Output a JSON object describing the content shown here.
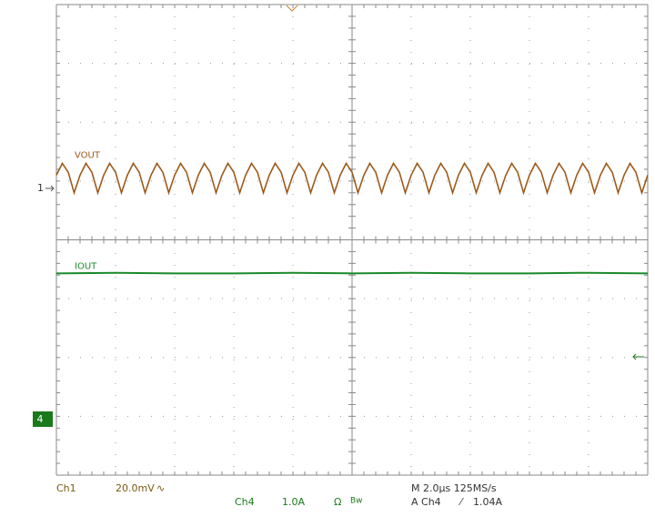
{
  "chart_data": {
    "type": "line",
    "series": [
      {
        "name": "VOUT",
        "color": "#9c5a1a",
        "x": [
          0,
          0.1,
          0.2,
          0.3,
          0.4,
          0.5,
          0.6,
          0.7,
          0.8,
          0.9,
          1,
          1.1,
          1.2,
          1.3,
          1.4,
          1.5,
          1.6,
          1.7,
          1.8,
          1.9,
          2,
          2.1,
          2.2,
          2.3,
          2.4,
          2.5,
          2.6,
          2.7,
          2.8,
          2.9,
          3,
          3.1,
          3.2,
          3.3,
          3.4,
          3.5,
          3.6,
          3.7,
          3.8,
          3.9,
          4,
          4.1,
          4.2,
          4.3,
          4.4,
          4.5,
          4.6,
          4.7,
          4.8,
          4.9,
          5,
          5.1,
          5.2,
          5.3,
          5.4,
          5.5,
          5.6,
          5.7,
          5.8,
          5.9,
          6,
          6.1,
          6.2,
          6.3,
          6.4,
          6.5,
          6.6,
          6.7,
          6.8,
          6.9,
          7,
          7.1,
          7.2,
          7.3,
          7.4,
          7.5,
          7.6,
          7.7,
          7.8,
          7.9,
          8,
          8.1,
          8.2,
          8.3,
          8.4,
          8.5,
          8.6,
          8.7,
          8.8,
          8.9,
          9,
          9.1,
          9.2,
          9.3,
          9.4,
          9.5,
          9.6,
          9.7,
          9.8,
          9.9,
          10
        ],
        "values": [
          1.1,
          1.3,
          1.15,
          0.8,
          1.1,
          1.3,
          1.15,
          0.8,
          1.1,
          1.3,
          1.15,
          0.8,
          1.1,
          1.3,
          1.15,
          0.8,
          1.1,
          1.3,
          1.15,
          0.8,
          1.1,
          1.3,
          1.15,
          0.8,
          1.1,
          1.3,
          1.15,
          0.8,
          1.1,
          1.3,
          1.15,
          0.8,
          1.1,
          1.3,
          1.15,
          0.8,
          1.1,
          1.3,
          1.15,
          0.8,
          1.1,
          1.3,
          1.15,
          0.8,
          1.1,
          1.3,
          1.15,
          0.8,
          1.1,
          1.3,
          1.15,
          0.8,
          1.1,
          1.3,
          1.15,
          0.8,
          1.1,
          1.3,
          1.15,
          0.8,
          1.1,
          1.3,
          1.15,
          0.8,
          1.1,
          1.3,
          1.15,
          0.8,
          1.1,
          1.3,
          1.15,
          0.8,
          1.1,
          1.3,
          1.15,
          0.8,
          1.1,
          1.3,
          1.15,
          0.8,
          1.1,
          1.3,
          1.15,
          0.8,
          1.1,
          1.3,
          1.15,
          0.8,
          1.1,
          1.3,
          1.15,
          0.8,
          1.1,
          1.3,
          1.15,
          0.8,
          1.1,
          1.3,
          1.15,
          0.8,
          1.1
        ]
      },
      {
        "name": "IOUT",
        "color": "#1a8a2a",
        "x": [
          0,
          1,
          2,
          3,
          4,
          5,
          6,
          7,
          8,
          9,
          10
        ],
        "values": [
          -0.57,
          -0.56,
          -0.57,
          -0.57,
          -0.56,
          -0.57,
          -0.56,
          -0.57,
          -0.57,
          -0.56,
          -0.57
        ]
      }
    ],
    "xlim": [
      0,
      10
    ],
    "ylim": [
      -4,
      4
    ],
    "xticks": [
      0,
      1,
      2,
      3,
      4,
      5,
      6,
      7,
      8,
      9,
      10
    ],
    "yticks": [
      -4,
      -3,
      -2,
      -1,
      0,
      1,
      2,
      3,
      4
    ],
    "grid": true,
    "markers": {
      "ch1": "1",
      "ch4": "4"
    },
    "readout": {
      "ch1": "Ch1",
      "ch1_scale": "20.0mV",
      "ch1_bw": "∿",
      "ch4": "Ch4",
      "ch4_scale": "1.0A",
      "ch4_imp": "Ω",
      "ch4_bw": "Bw",
      "timebase": "M 2.0μs 125MS/s",
      "trigger_src": "A Ch4",
      "trigger_slope": "⁄",
      "trigger_level": "1.04A"
    }
  }
}
